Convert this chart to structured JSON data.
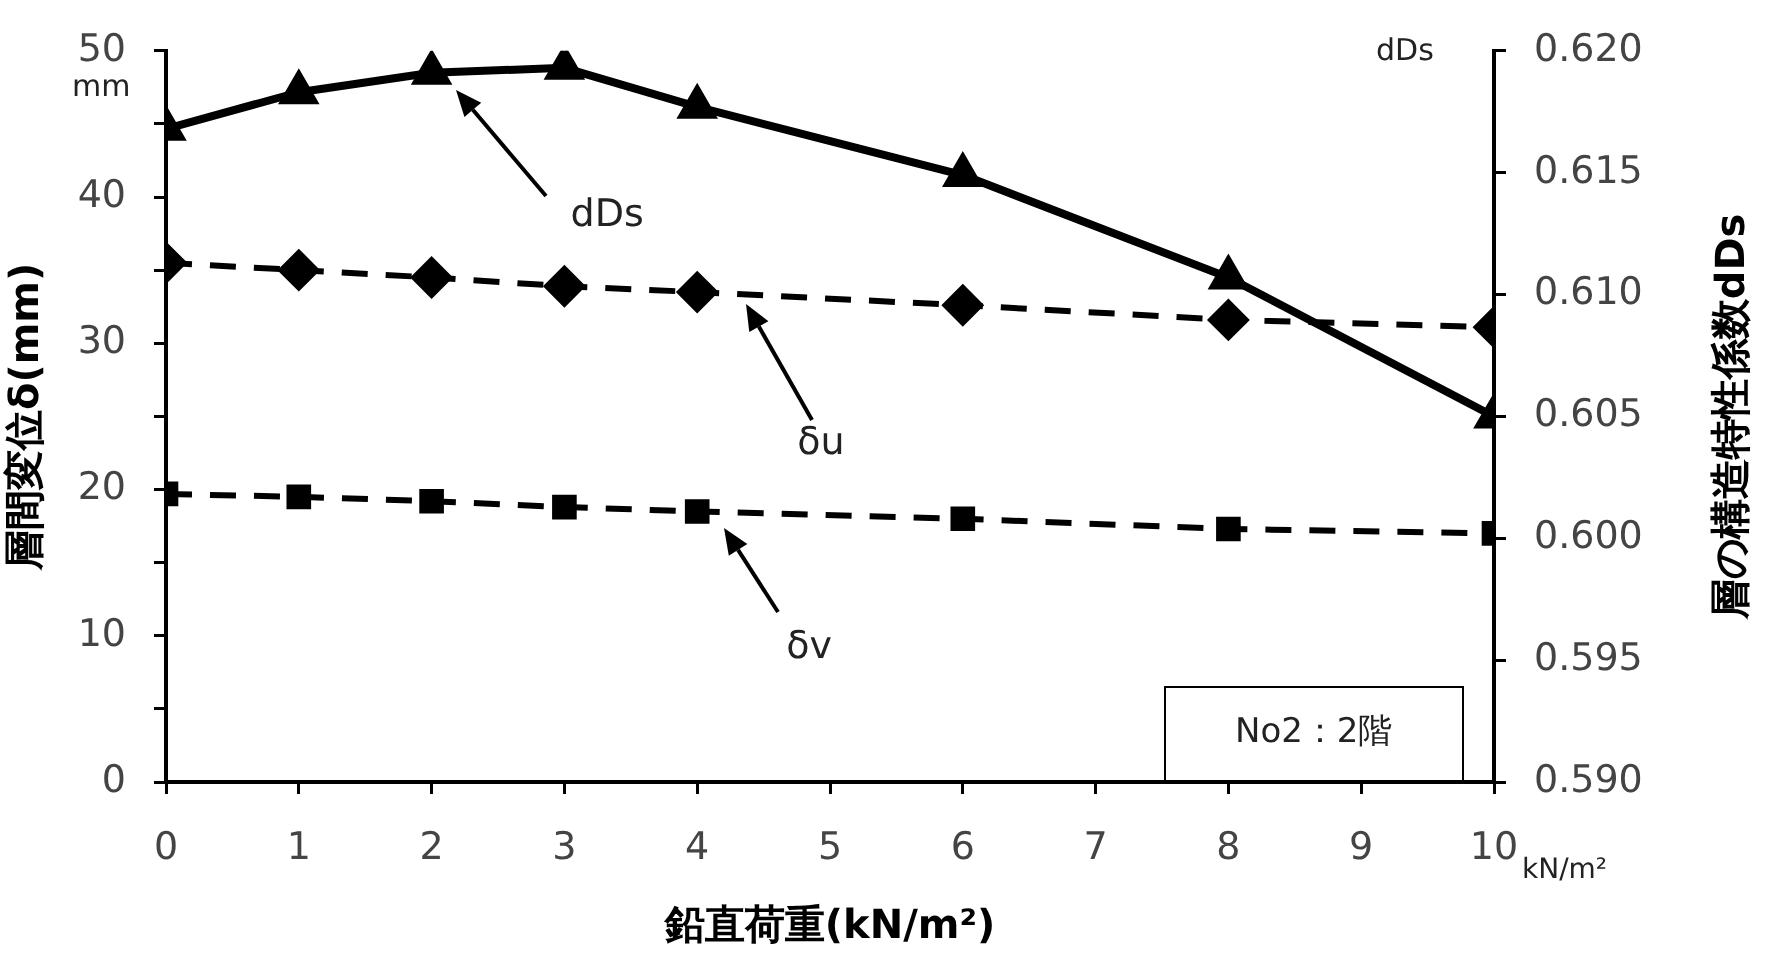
{
  "chart_data": {
    "type": "line",
    "xlabel": "鉛直荷重(kN/m²)",
    "ylabel": "層間変位δ(mm)",
    "y2label": "層の構造特性係数dDs",
    "x": [
      0,
      1,
      2,
      3,
      4,
      6,
      8,
      10
    ],
    "series": [
      {
        "color": "#000000",
        "axis": "y2",
        "marker": "triangle",
        "line_style": "solid",
        "values": [
          0.6168,
          0.6183,
          0.6191,
          0.6193,
          0.6177,
          0.6149,
          0.6107,
          0.605
        ]
      },
      {
        "color": "#000000",
        "marker": "diamond",
        "line_style": "dashed",
        "values": [
          35.5,
          35.0,
          34.5,
          33.9,
          33.5,
          32.6,
          31.6,
          31.1
        ]
      },
      {
        "color": "#000000",
        "marker": "square",
        "line_style": "dashed",
        "values": [
          19.7,
          19.5,
          19.2,
          18.8,
          18.5,
          18.0,
          17.3,
          17.0
        ]
      }
    ],
    "xlim": [
      0,
      10
    ],
    "xticks": [
      0,
      1,
      2,
      3,
      4,
      5,
      6,
      7,
      8,
      9,
      10
    ],
    "ylim": [
      0,
      50
    ],
    "yticks": [
      0,
      {
        "value": 5,
        "label": null
      },
      10,
      {
        "value": 15,
        "label": null
      },
      20,
      {
        "value": 25,
        "label": null
      },
      30,
      {
        "value": 35,
        "label": null
      },
      40,
      {
        "value": 45,
        "label": null
      },
      50
    ],
    "y2lim": [
      0.59,
      0.62
    ],
    "y2ticks": [
      {
        "value": 0.59,
        "label": "0.590"
      },
      {
        "value": 0.595,
        "label": "0.595"
      },
      {
        "value": 0.6,
        "label": "0.600"
      },
      {
        "value": 0.605,
        "label": "0.605"
      },
      {
        "value": 0.61,
        "label": "0.610"
      },
      {
        "value": 0.615,
        "label": "0.615"
      },
      {
        "value": 0.62,
        "label": "0.620"
      }
    ],
    "annotations": [
      "mm",
      "dDs",
      "dDs",
      "δu",
      "δv",
      "No2：2階",
      "kN/m²"
    ],
    "grid": false,
    "legend": false
  }
}
